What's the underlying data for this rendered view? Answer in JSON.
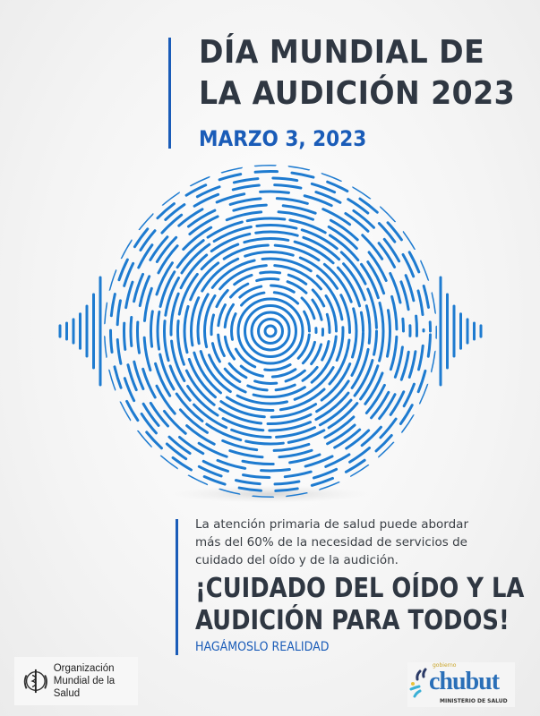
{
  "header": {
    "title_line1": "DÍA MUNDIAL DE",
    "title_line2": "LA AUDICIÓN 2023",
    "date": "MARZO 3, 2023"
  },
  "body": {
    "paragraph": [
      "La atención primaria de salud puede abordar",
      "más del 60% de la necesidad de servicios de",
      "cuidado del oído y de la audición."
    ],
    "headline": [
      "¡CUIDADO DEL OÍDO Y LA",
      "AUDICIÓN PARA TODOS!"
    ],
    "tagline": "HAGÁMOSLO REALIDAD"
  },
  "logos": {
    "who": {
      "name_line1": "Organización",
      "name_line2": "Mundial de la Salud",
      "icon": "who-emblem-icon"
    },
    "chubut": {
      "name": "chubut",
      "small": "gobierno",
      "ministry": "MINISTERIO DE SALUD"
    }
  },
  "colors": {
    "accent": "#1a5cb8",
    "text": "#2f3742",
    "globe": "#1e7bd0"
  }
}
